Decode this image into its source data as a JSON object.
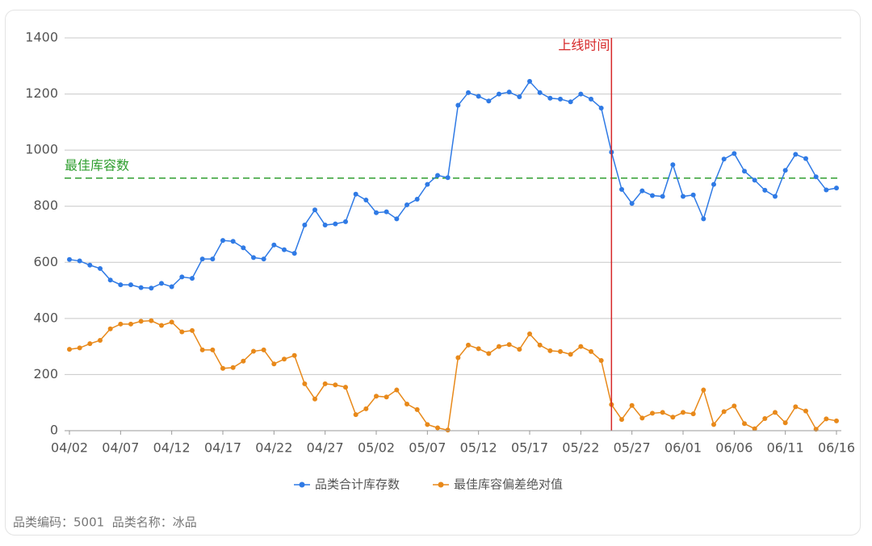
{
  "chart_data": {
    "type": "line",
    "categories": [
      "04/02",
      null,
      null,
      null,
      null,
      "04/07",
      null,
      null,
      null,
      null,
      "04/12",
      null,
      null,
      null,
      null,
      "04/17",
      null,
      null,
      null,
      null,
      "04/22",
      null,
      null,
      null,
      null,
      "04/27",
      null,
      null,
      null,
      null,
      "05/02",
      null,
      null,
      null,
      null,
      "05/07",
      null,
      null,
      null,
      null,
      "05/12",
      null,
      null,
      null,
      null,
      "05/17",
      null,
      null,
      null,
      null,
      "05/22",
      null,
      null,
      null,
      null,
      "05/27",
      null,
      null,
      null,
      null,
      "06/01",
      null,
      null,
      null,
      null,
      "06/06",
      null,
      null,
      null,
      null,
      "06/11",
      null,
      null,
      null,
      null,
      "06/16"
    ],
    "series": [
      {
        "name": "品类合计库存数",
        "color": "#2f7ae5",
        "values": [
          610,
          605,
          590,
          578,
          537,
          520,
          520,
          510,
          508,
          525,
          513,
          548,
          543,
          612,
          612,
          678,
          675,
          652,
          617,
          612,
          662,
          645,
          632,
          733,
          787,
          733,
          737,
          745,
          843,
          822,
          777,
          780,
          755,
          805,
          825,
          878,
          910,
          902,
          1160,
          1205,
          1192,
          1175,
          1200,
          1207,
          1190,
          1245,
          1205,
          1185,
          1182,
          1172,
          1200,
          1182,
          1150,
          993,
          860,
          810,
          855,
          838,
          835,
          948,
          835,
          840,
          755,
          878,
          968,
          988,
          925,
          893,
          857,
          835,
          928,
          985,
          970,
          905,
          858,
          865
        ]
      },
      {
        "name": "最佳库容偏差绝对值",
        "color": "#e8891a",
        "values": [
          290,
          295,
          310,
          322,
          363,
          380,
          380,
          390,
          392,
          375,
          387,
          352,
          357,
          288,
          288,
          222,
          225,
          248,
          283,
          288,
          238,
          255,
          268,
          167,
          113,
          167,
          163,
          155,
          57,
          78,
          123,
          120,
          145,
          95,
          75,
          22,
          10,
          2,
          260,
          305,
          292,
          275,
          300,
          307,
          290,
          345,
          305,
          285,
          282,
          272,
          300,
          282,
          250,
          93,
          40,
          90,
          45,
          62,
          65,
          48,
          65,
          60,
          145,
          22,
          68,
          88,
          25,
          7,
          43,
          65,
          28,
          85,
          70,
          5,
          42,
          35
        ]
      }
    ],
    "ylim": [
      0,
      1400
    ],
    "yticks": [
      0,
      200,
      400,
      600,
      800,
      1000,
      1200,
      1400
    ],
    "grid": true,
    "hlines": [
      {
        "value": 900,
        "label": "最佳库容数",
        "color": "#2e9e2e"
      }
    ],
    "vlines": [
      {
        "index": 53,
        "label": "上线时间",
        "color": "#d62728"
      }
    ],
    "legend": "bottom",
    "footnote": "品类编码：5001  品类名称：冰品"
  }
}
